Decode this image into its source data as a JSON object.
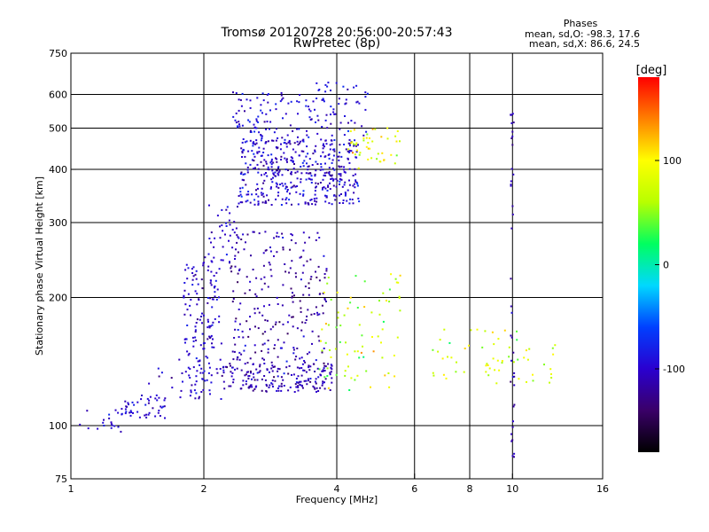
{
  "chart_data": {
    "type": "scatter",
    "title": "Tromsø 20120728 20:56:00-20:57:43",
    "subtitle": "RwPretec (8p)",
    "xlabel": "Frequency [MHz]",
    "ylabel": "Stationary phase Virtual Height [km]",
    "x_scale": "log",
    "y_scale": "log",
    "xlim": [
      1,
      16
    ],
    "ylim": [
      75,
      750
    ],
    "x_ticks": [
      {
        "value": 1,
        "label": "1"
      },
      {
        "value": 2,
        "label": "2"
      },
      {
        "value": 4,
        "label": "4"
      },
      {
        "value": 6,
        "label": "6"
      },
      {
        "value": 8,
        "label": "8"
      },
      {
        "value": 10,
        "label": "10"
      },
      {
        "value": 16,
        "label": "16"
      }
    ],
    "x_gridlines": [
      2,
      4,
      6,
      8,
      10
    ],
    "y_ticks": [
      {
        "value": 75,
        "label": "75"
      },
      {
        "value": 100,
        "label": "100"
      },
      {
        "value": 200,
        "label": "200"
      },
      {
        "value": 300,
        "label": "300"
      },
      {
        "value": 400,
        "label": "400"
      },
      {
        "value": 500,
        "label": "500"
      },
      {
        "value": 600,
        "label": "600"
      },
      {
        "value": 750,
        "label": "750"
      }
    ],
    "y_gridlines": [
      100,
      200,
      300,
      400,
      500,
      600
    ],
    "grid": true,
    "stats_title": "Phases",
    "stats_lines": [
      "mean, sd,O:  -98.3, 17.6",
      "mean, sd,X:  86.6, 24.5"
    ],
    "colorbar": {
      "label": "[deg]",
      "range": [
        -180,
        180
      ],
      "ticks": [
        {
          "value": 100,
          "label": "100"
        },
        {
          "value": 0,
          "label": "0"
        },
        {
          "value": -100,
          "label": "-100"
        }
      ],
      "colors": [
        "#000000",
        "#3a0068",
        "#2a00d0",
        "#0040ff",
        "#00d8ff",
        "#00ff60",
        "#b8ff00",
        "#ffff00",
        "#ff8000",
        "#ff0000"
      ]
    },
    "clusters": [
      {
        "x_range": [
          1.04,
          1.3
        ],
        "y_range": [
          96,
          110
        ],
        "count": 18,
        "phase": -95,
        "phase_sd": 15
      },
      {
        "x_range": [
          1.3,
          1.65
        ],
        "y_range": [
          104,
          118
        ],
        "count": 45,
        "phase": -100,
        "phase_sd": 12
      },
      {
        "x_range": [
          1.5,
          1.8
        ],
        "y_range": [
          112,
          145
        ],
        "count": 15,
        "phase": -105,
        "phase_sd": 15
      },
      {
        "x_range": [
          1.8,
          2.2
        ],
        "y_range": [
          115,
          245
        ],
        "count": 160,
        "phase": -100,
        "phase_sd": 15
      },
      {
        "x_range": [
          2.0,
          2.4
        ],
        "y_range": [
          240,
          330
        ],
        "count": 40,
        "phase": -100,
        "phase_sd": 15
      },
      {
        "x_range": [
          2.2,
          3.9
        ],
        "y_range": [
          120,
          140
        ],
        "count": 190,
        "phase": -110,
        "phase_sd": 20
      },
      {
        "x_range": [
          2.3,
          3.8
        ],
        "y_range": [
          140,
          290
        ],
        "count": 230,
        "phase": -115,
        "phase_sd": 22
      },
      {
        "x_range": [
          2.4,
          4.5
        ],
        "y_range": [
          330,
          470
        ],
        "count": 430,
        "phase": -100,
        "phase_sd": 20
      },
      {
        "x_range": [
          2.3,
          3.3
        ],
        "y_range": [
          460,
          610
        ],
        "count": 90,
        "phase": -95,
        "phase_sd": 20
      },
      {
        "x_range": [
          3.4,
          4.7
        ],
        "y_range": [
          470,
          640
        ],
        "count": 70,
        "phase": -95,
        "phase_sd": 20
      },
      {
        "x_range": [
          4.2,
          5.6
        ],
        "y_range": [
          400,
          500
        ],
        "count": 45,
        "phase": 90,
        "phase_sd": 30
      },
      {
        "x_range": [
          3.6,
          5.6
        ],
        "y_range": [
          120,
          230
        ],
        "count": 80,
        "phase": 70,
        "phase_sd": 40
      },
      {
        "x_range": [
          6.5,
          12.5
        ],
        "y_range": [
          125,
          170
        ],
        "count": 60,
        "phase": 80,
        "phase_sd": 40
      },
      {
        "x_range": [
          9.9,
          10.1
        ],
        "y_range": [
          80,
          610
        ],
        "count": 40,
        "phase": -110,
        "phase_sd": 15
      }
    ]
  }
}
